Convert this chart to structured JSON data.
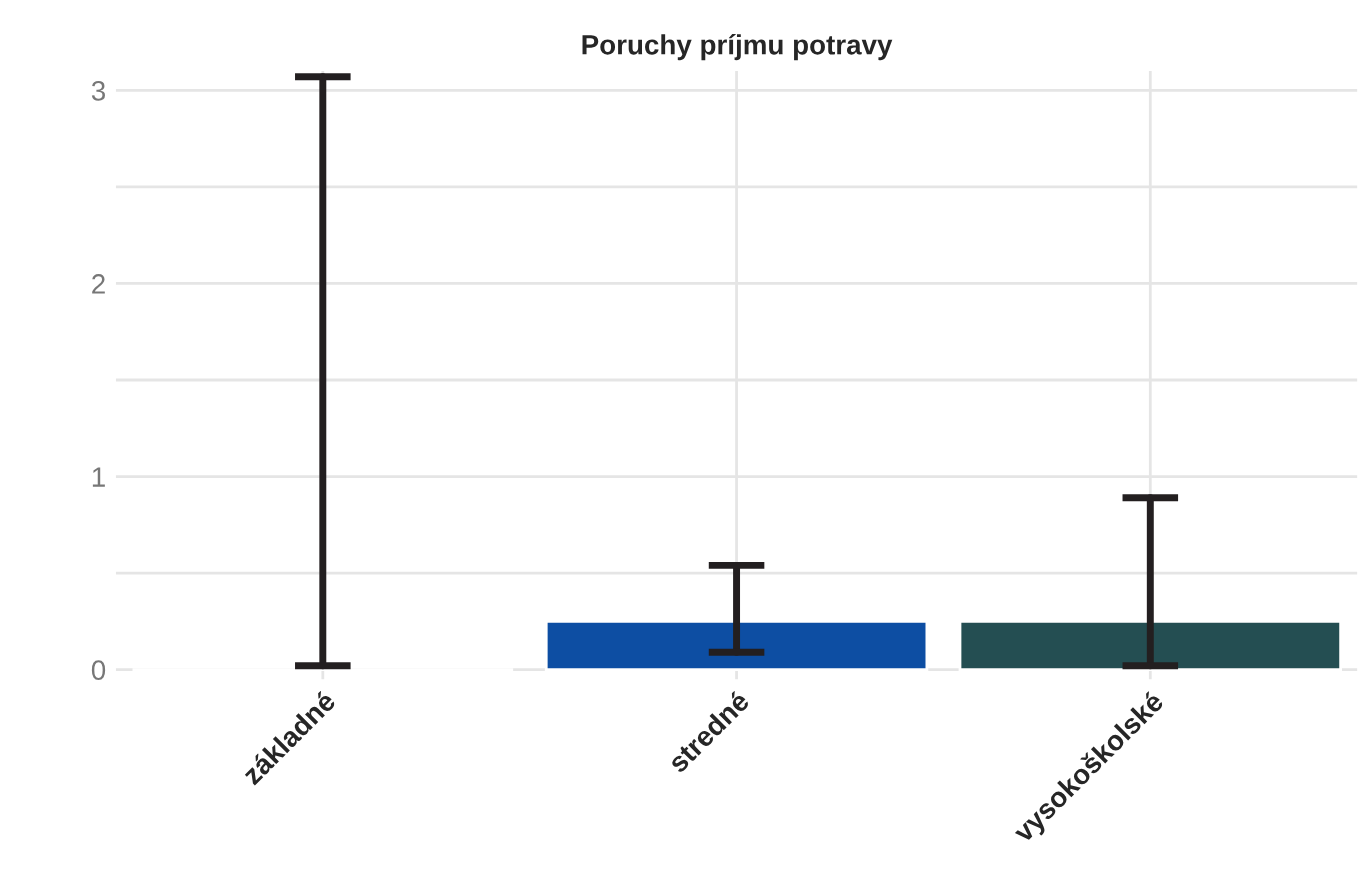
{
  "chart_data": {
    "type": "bar",
    "title": "Poruchy príjmu potravy",
    "categories": [
      "základné",
      "stredné",
      "vysokoškolské"
    ],
    "values": [
      0,
      0.25,
      0.25
    ],
    "colors": [
      "#7f7f7f",
      "#0d4ea3",
      "#244e52"
    ],
    "errors": [
      [
        0.02,
        3.07
      ],
      [
        0.09,
        0.54
      ],
      [
        0.02,
        0.89
      ]
    ],
    "ylim": [
      -0.05,
      3.1
    ],
    "yticks": [
      0,
      {
        "value": 0.5,
        "label": null
      },
      1,
      {
        "value": 1.5,
        "label": null
      },
      2,
      {
        "value": 2.5,
        "label": null
      },
      3
    ],
    "grid": true
  }
}
